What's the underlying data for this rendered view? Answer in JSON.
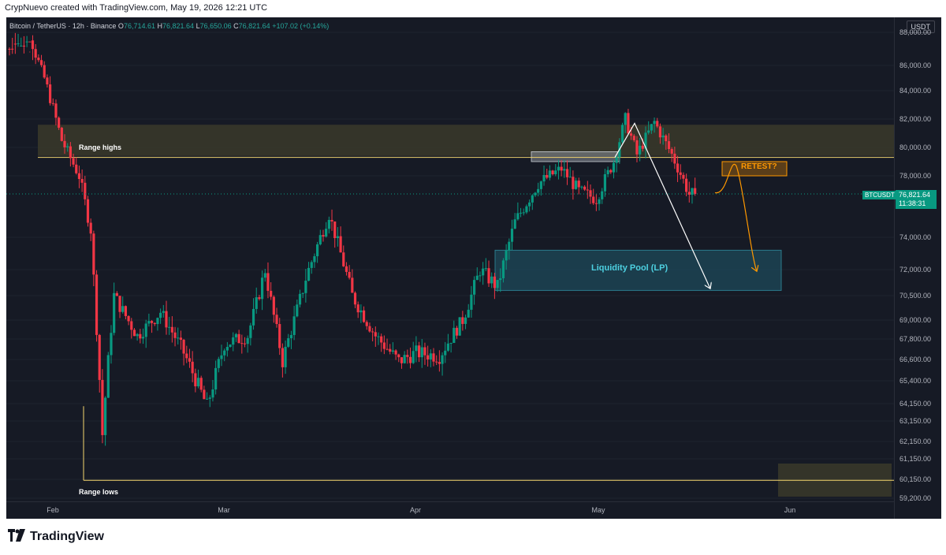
{
  "header": {
    "credit": "CrypNuevo created with TradingView.com, May 19, 2026 12:21 UTC"
  },
  "legend": {
    "symbol": "Bitcoin / TetherUS · 12h · Binance",
    "o_key": "O",
    "o": "76,714.61",
    "h_key": "H",
    "h": "76,821.64",
    "l_key": "L",
    "l": "76,650.06",
    "c_key": "C",
    "c": "76,821.64",
    "change": "+107.02 (+0.14%)"
  },
  "currency": "USDT",
  "y_ticks": [
    "88,000.00",
    "86,000.00",
    "84,000.00",
    "82,000.00",
    "80,000.00",
    "78,000.00",
    "74,000.00",
    "72,000.00",
    "70,500.00",
    "69,000.00",
    "67,800.00",
    "66,600.00",
    "65,400.00",
    "64,150.00",
    "63,150.00",
    "62,150.00",
    "61,150.00",
    "60,150.00",
    "59,200.00"
  ],
  "x_ticks": [
    "Feb",
    "Mar",
    "Apr",
    "May",
    "Jun"
  ],
  "price_tag": {
    "symbol": "BTCUSDT",
    "price": "76,821.64",
    "countdown": "11:38:31"
  },
  "annotations": {
    "range_highs": "Range highs",
    "range_lows": "Range lows",
    "liquidity_pool": "Liquidity Pool (LP)",
    "retest": "RETEST?"
  },
  "colors": {
    "up": "#089981",
    "down": "#f23645",
    "background": "#161a25",
    "range_line": "#f5d76e",
    "lp_zone": "#1e4a5a",
    "retest": "#ff9800"
  },
  "chart_data": {
    "type": "candlestick",
    "interval": "12h",
    "waypoints": [
      [
        "2026-01-21",
        89000
      ],
      [
        "2026-01-24",
        88500
      ],
      [
        "2026-01-27",
        85000
      ],
      [
        "2026-01-30",
        80500
      ],
      [
        "2026-02-02",
        78000
      ],
      [
        "2026-02-04",
        74500
      ],
      [
        "2026-02-06",
        62500
      ],
      [
        "2026-02-08",
        70500
      ],
      [
        "2026-02-12",
        68000
      ],
      [
        "2026-02-16",
        69500
      ],
      [
        "2026-02-20",
        67000
      ],
      [
        "2026-02-24",
        64000
      ],
      [
        "2026-02-27",
        67500
      ],
      [
        "2026-03-03",
        68000
      ],
      [
        "2026-03-06",
        72000
      ],
      [
        "2026-03-09",
        66500
      ],
      [
        "2026-03-13",
        71500
      ],
      [
        "2026-03-17",
        75500
      ],
      [
        "2026-03-21",
        70500
      ],
      [
        "2026-03-25",
        68000
      ],
      [
        "2026-03-29",
        66500
      ],
      [
        "2026-04-01",
        67000
      ],
      [
        "2026-04-05",
        66800
      ],
      [
        "2026-04-09",
        69000
      ],
      [
        "2026-04-12",
        72000
      ],
      [
        "2026-04-15",
        71000
      ],
      [
        "2026-04-18",
        75000
      ],
      [
        "2026-04-22",
        77500
      ],
      [
        "2026-04-26",
        78500
      ],
      [
        "2026-04-29",
        77000
      ],
      [
        "2026-05-02",
        76500
      ],
      [
        "2026-05-05",
        79000
      ],
      [
        "2026-05-07",
        82000
      ],
      [
        "2026-05-09",
        79500
      ],
      [
        "2026-05-12",
        81800
      ],
      [
        "2026-05-15",
        79500
      ],
      [
        "2026-05-18",
        76800
      ],
      [
        "2026-05-19",
        76821.64
      ]
    ],
    "range_highs": 79300,
    "range_lows": 60100,
    "range_highs_zone": [
      79400,
      81600
    ],
    "liquidity_pool_zone": [
      70800,
      73200
    ],
    "retest_zone": [
      78000,
      79000
    ],
    "last_price": 76821.64
  }
}
